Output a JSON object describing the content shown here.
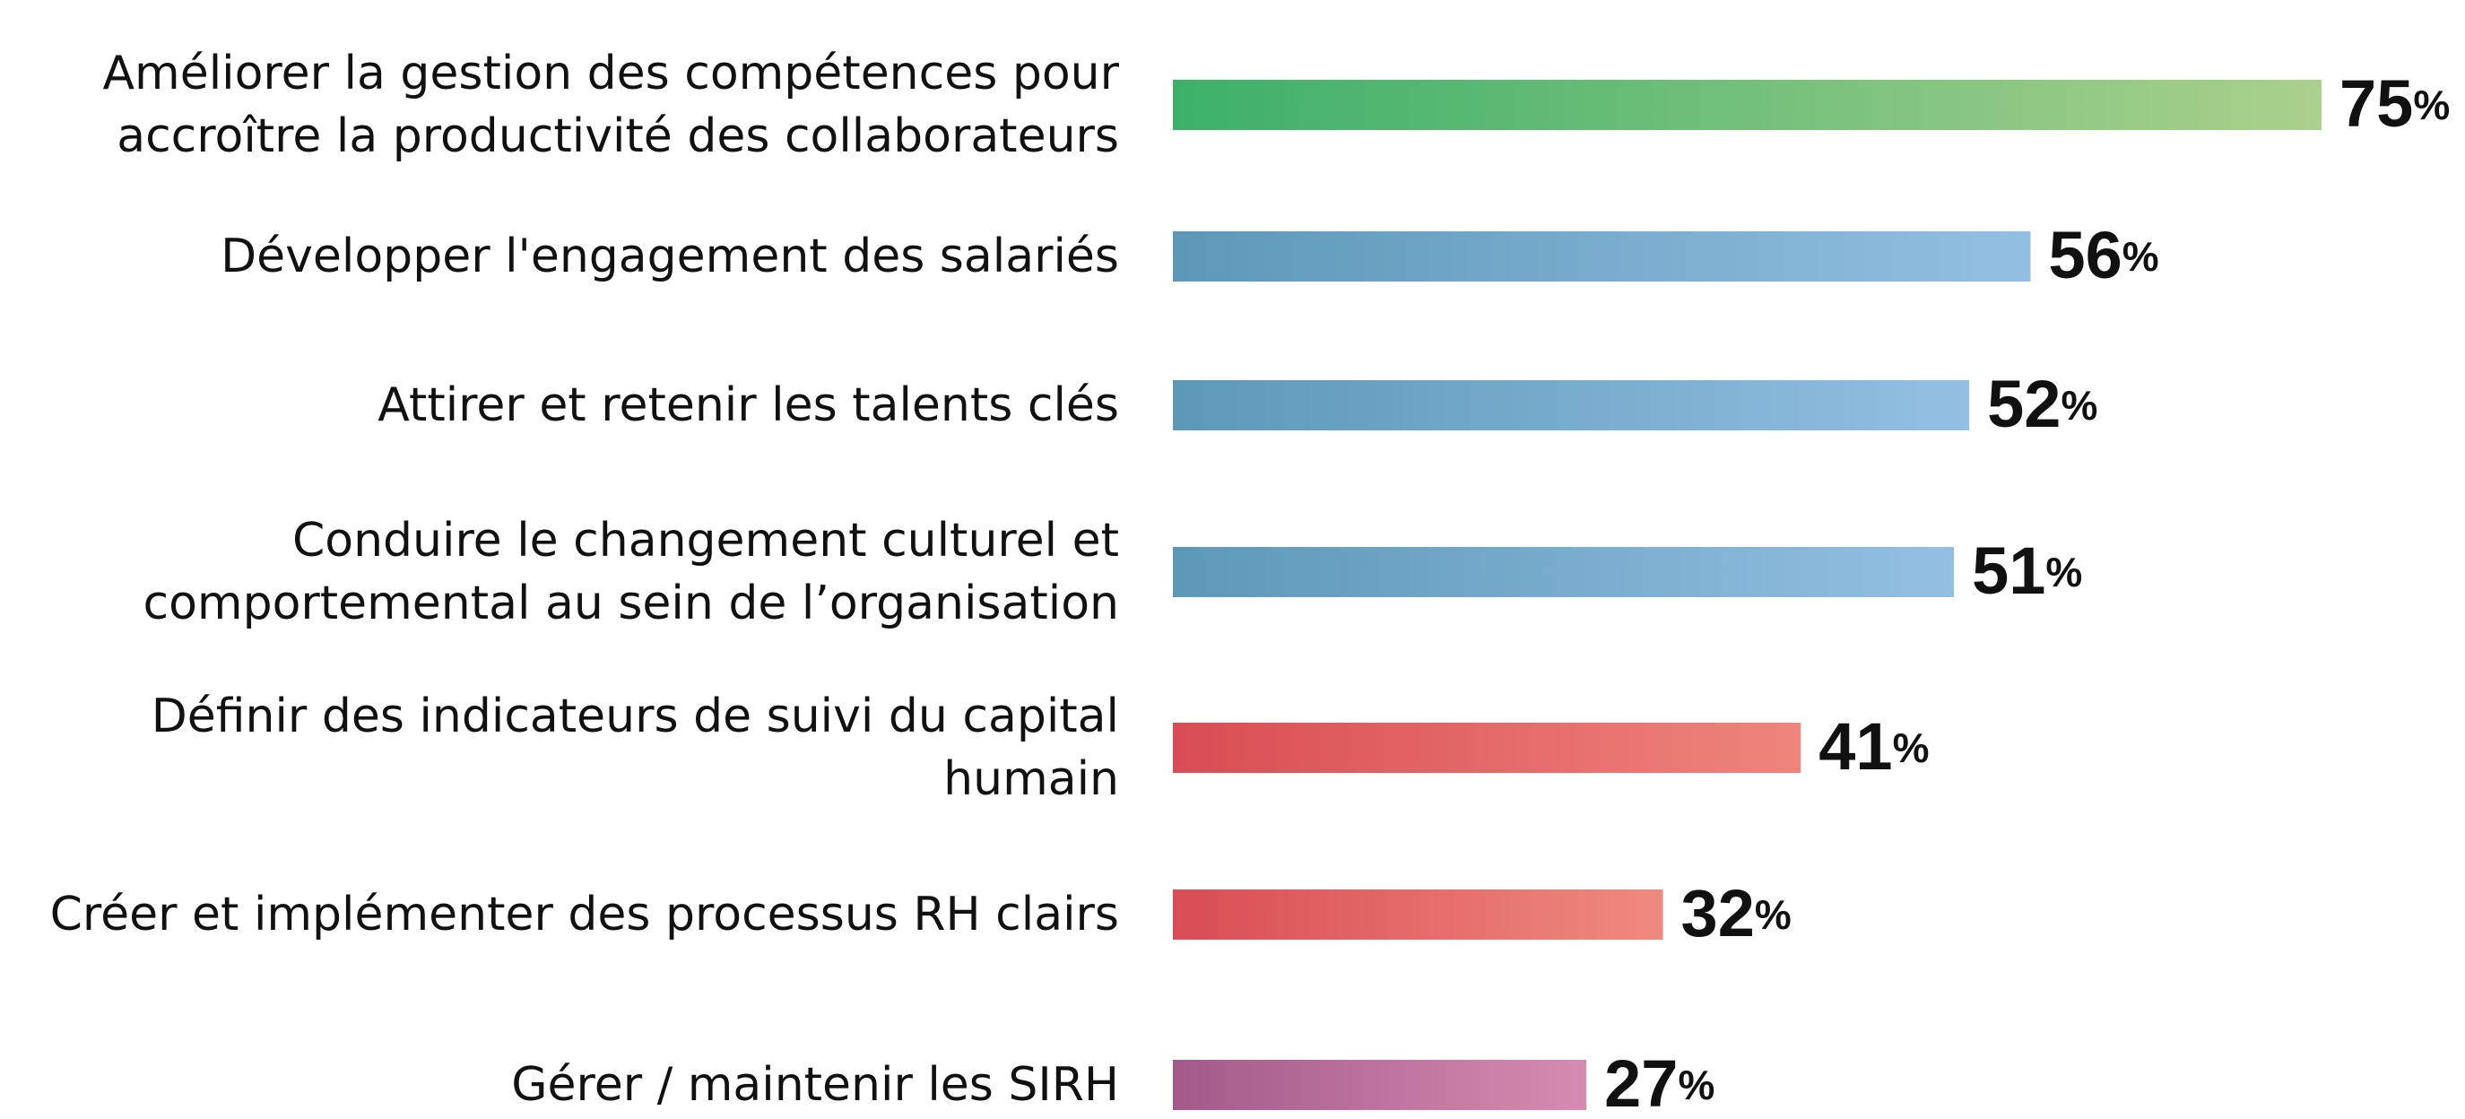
{
  "chart_data": {
    "type": "barh",
    "categories": [
      "Améliorer la gestion des compétences pour\naccroître la productivité des collaborateurs",
      "Développer l'engagement des salariés",
      "Attirer et retenir les talents clés",
      "Conduire le changement culturel et\ncomportemental au sein de l’organisation",
      "Définir des indicateurs de suivi du capital\nhumain",
      "Créer et implémenter des processus RH clairs",
      "Gérer / maintenir les SIRH"
    ],
    "values": [
      75,
      56,
      52,
      51,
      41,
      32,
      27
    ],
    "value_labels": [
      "75%",
      "56%",
      "52%",
      "51%",
      "41%",
      "32%",
      "27%"
    ],
    "colors": [
      [
        "#3cb06a",
        "#aad08c"
      ],
      [
        "#5d98b8",
        "#93bfe2"
      ],
      [
        "#5d98b8",
        "#93bfe2"
      ],
      [
        "#5d98b8",
        "#93bfe2"
      ],
      [
        "#d94c55",
        "#ef857c"
      ],
      [
        "#d94c55",
        "#f08a80"
      ],
      [
        "#a35a8b",
        "#d78bb1"
      ]
    ]
  }
}
